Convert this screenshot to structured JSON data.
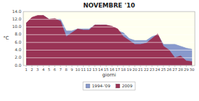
{
  "chart_data": {
    "type": "area",
    "title": "NOVEMBRE '10",
    "x_label": "giorni",
    "y_label": "°C",
    "x": [
      1,
      2,
      3,
      4,
      5,
      6,
      7,
      8,
      9,
      10,
      11,
      12,
      13,
      14,
      15,
      16,
      17,
      18,
      19,
      20,
      21,
      22,
      23,
      24,
      25,
      26,
      27,
      28,
      29,
      30
    ],
    "series": [
      {
        "name": "1994-'09",
        "color": "#8899cc",
        "values": [
          11.0,
          12.0,
          12.5,
          13.0,
          12.0,
          12.0,
          12.0,
          9.0,
          9.0,
          9.5,
          9.5,
          9.5,
          10.5,
          10.5,
          10.5,
          10.0,
          9.0,
          8.5,
          7.0,
          6.5,
          6.5,
          6.5,
          7.5,
          8.0,
          5.5,
          5.5,
          5.5,
          5.0,
          4.5,
          4.2
        ]
      },
      {
        "name": "2009",
        "color": "#993355",
        "values": [
          11.0,
          12.5,
          13.0,
          13.0,
          12.0,
          12.2,
          11.5,
          7.5,
          8.5,
          9.5,
          9.2,
          9.2,
          10.5,
          10.5,
          10.5,
          10.2,
          9.5,
          7.5,
          6.5,
          5.5,
          5.5,
          5.8,
          7.0,
          8.2,
          5.0,
          4.0,
          2.0,
          2.5,
          1.2,
          1.0
        ]
      }
    ],
    "xlim": [
      0.5,
      30.5
    ],
    "xticks": [
      1,
      2,
      3,
      4,
      5,
      6,
      7,
      8,
      9,
      10,
      11,
      12,
      13,
      14,
      15,
      16,
      17,
      18,
      19,
      20,
      21,
      22,
      23,
      24,
      25,
      26,
      27,
      28,
      29,
      30
    ],
    "ylim": [
      0,
      14
    ],
    "yticks": [
      {
        "value": 0,
        "label": "0.0"
      },
      {
        "value": 2,
        "label": "2.0"
      },
      {
        "value": 4,
        "label": "4.0"
      },
      {
        "value": 6,
        "label": "6.0"
      },
      {
        "value": 8,
        "label": "8.0"
      },
      {
        "value": 10,
        "label": "10.0"
      },
      {
        "value": 12,
        "label": "12.0"
      },
      {
        "value": 14,
        "label": "14.0"
      }
    ],
    "grid": true,
    "legend": "bottom"
  }
}
